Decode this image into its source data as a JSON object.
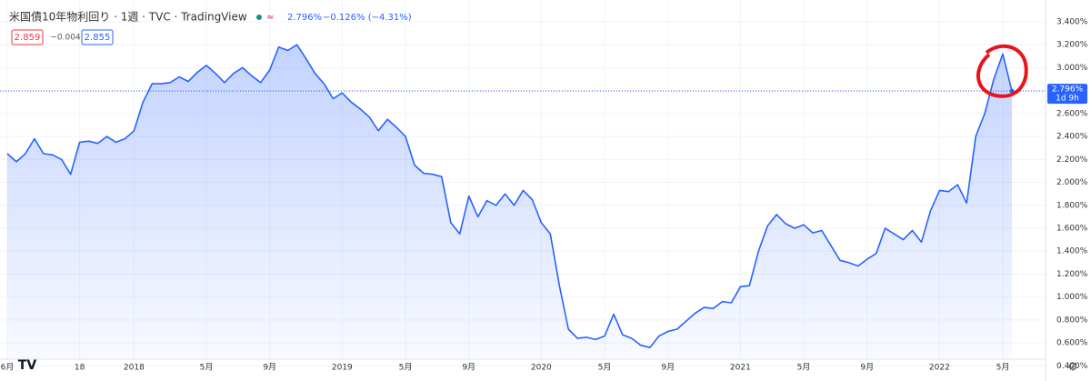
{
  "chart_data": {
    "type": "area",
    "title": "米国債10年物利回り · 1週 · TVC · TradingView",
    "last": "2.796%",
    "change": "−0.126% (−4.31%)",
    "bid": "2.859",
    "spread": "−0.004",
    "ask": "2.855",
    "price_tag": {
      "value": 2.796,
      "label": "2.796%"
    },
    "countdown": "1d 9h",
    "color": "#2962ff",
    "values": [
      2.25,
      2.18,
      2.25,
      2.38,
      2.25,
      2.24,
      2.2,
      2.07,
      2.35,
      2.36,
      2.34,
      2.4,
      2.35,
      2.38,
      2.45,
      2.7,
      2.86,
      2.86,
      2.87,
      2.92,
      2.88,
      2.96,
      3.02,
      2.95,
      2.87,
      2.95,
      3.0,
      2.93,
      2.87,
      2.98,
      3.18,
      3.15,
      3.2,
      3.08,
      2.95,
      2.86,
      2.73,
      2.78,
      2.7,
      2.64,
      2.57,
      2.45,
      2.55,
      2.48,
      2.4,
      2.15,
      2.08,
      2.07,
      2.05,
      1.65,
      1.55,
      1.88,
      1.7,
      1.84,
      1.8,
      1.9,
      1.8,
      1.93,
      1.85,
      1.65,
      1.55,
      1.1,
      0.72,
      0.64,
      0.65,
      0.63,
      0.66,
      0.85,
      0.67,
      0.64,
      0.58,
      0.56,
      0.66,
      0.7,
      0.72,
      0.79,
      0.86,
      0.91,
      0.9,
      0.96,
      0.95,
      1.09,
      1.1,
      1.4,
      1.62,
      1.72,
      1.64,
      1.6,
      1.63,
      1.56,
      1.58,
      1.45,
      1.32,
      1.3,
      1.27,
      1.33,
      1.38,
      1.6,
      1.55,
      1.5,
      1.58,
      1.48,
      1.75,
      1.93,
      1.92,
      1.98,
      1.82,
      2.4,
      2.6,
      2.9,
      3.12,
      2.796
    ],
    "xticks": [
      {
        "value": 0,
        "label": "6月"
      },
      {
        "value": 8,
        "label": "18"
      },
      {
        "value": 14,
        "label": "2018"
      },
      {
        "value": 22,
        "label": "5月"
      },
      {
        "value": 29,
        "label": "9月"
      },
      {
        "value": 37,
        "label": "2019"
      },
      {
        "value": 44,
        "label": "5月"
      },
      {
        "value": 51,
        "label": "9月"
      },
      {
        "value": 59,
        "label": "2020"
      },
      {
        "value": 66,
        "label": "5月"
      },
      {
        "value": 73,
        "label": "9月"
      },
      {
        "value": 81,
        "label": "2021"
      },
      {
        "value": 88,
        "label": "5月"
      },
      {
        "value": 95,
        "label": "9月"
      },
      {
        "value": 103,
        "label": "2022"
      },
      {
        "value": 110,
        "label": "5月"
      }
    ],
    "ylim": [
      0.3,
      3.59
    ],
    "yticks": [
      {
        "value": 3.4,
        "label": "3.400%"
      },
      {
        "value": 3.2,
        "label": "3.200%"
      },
      {
        "value": 3.0,
        "label": "3.000%"
      },
      {
        "value": 2.8,
        "label": "2.800%"
      },
      {
        "value": 2.6,
        "label": "2.600%"
      },
      {
        "value": 2.4,
        "label": "2.400%"
      },
      {
        "value": 2.2,
        "label": "2.200%"
      },
      {
        "value": 2.0,
        "label": "2.000%"
      },
      {
        "value": 1.8,
        "label": "1.800%"
      },
      {
        "value": 1.6,
        "label": "1.600%"
      },
      {
        "value": 1.4,
        "label": "1.400%"
      },
      {
        "value": 1.2,
        "label": "1.200%"
      },
      {
        "value": 1.0,
        "label": "1.000%"
      },
      {
        "value": 0.8,
        "label": "0.800%"
      },
      {
        "value": 0.6,
        "label": "0.600%"
      },
      {
        "value": 0.4,
        "label": "0.400%"
      }
    ],
    "grid": true
  }
}
